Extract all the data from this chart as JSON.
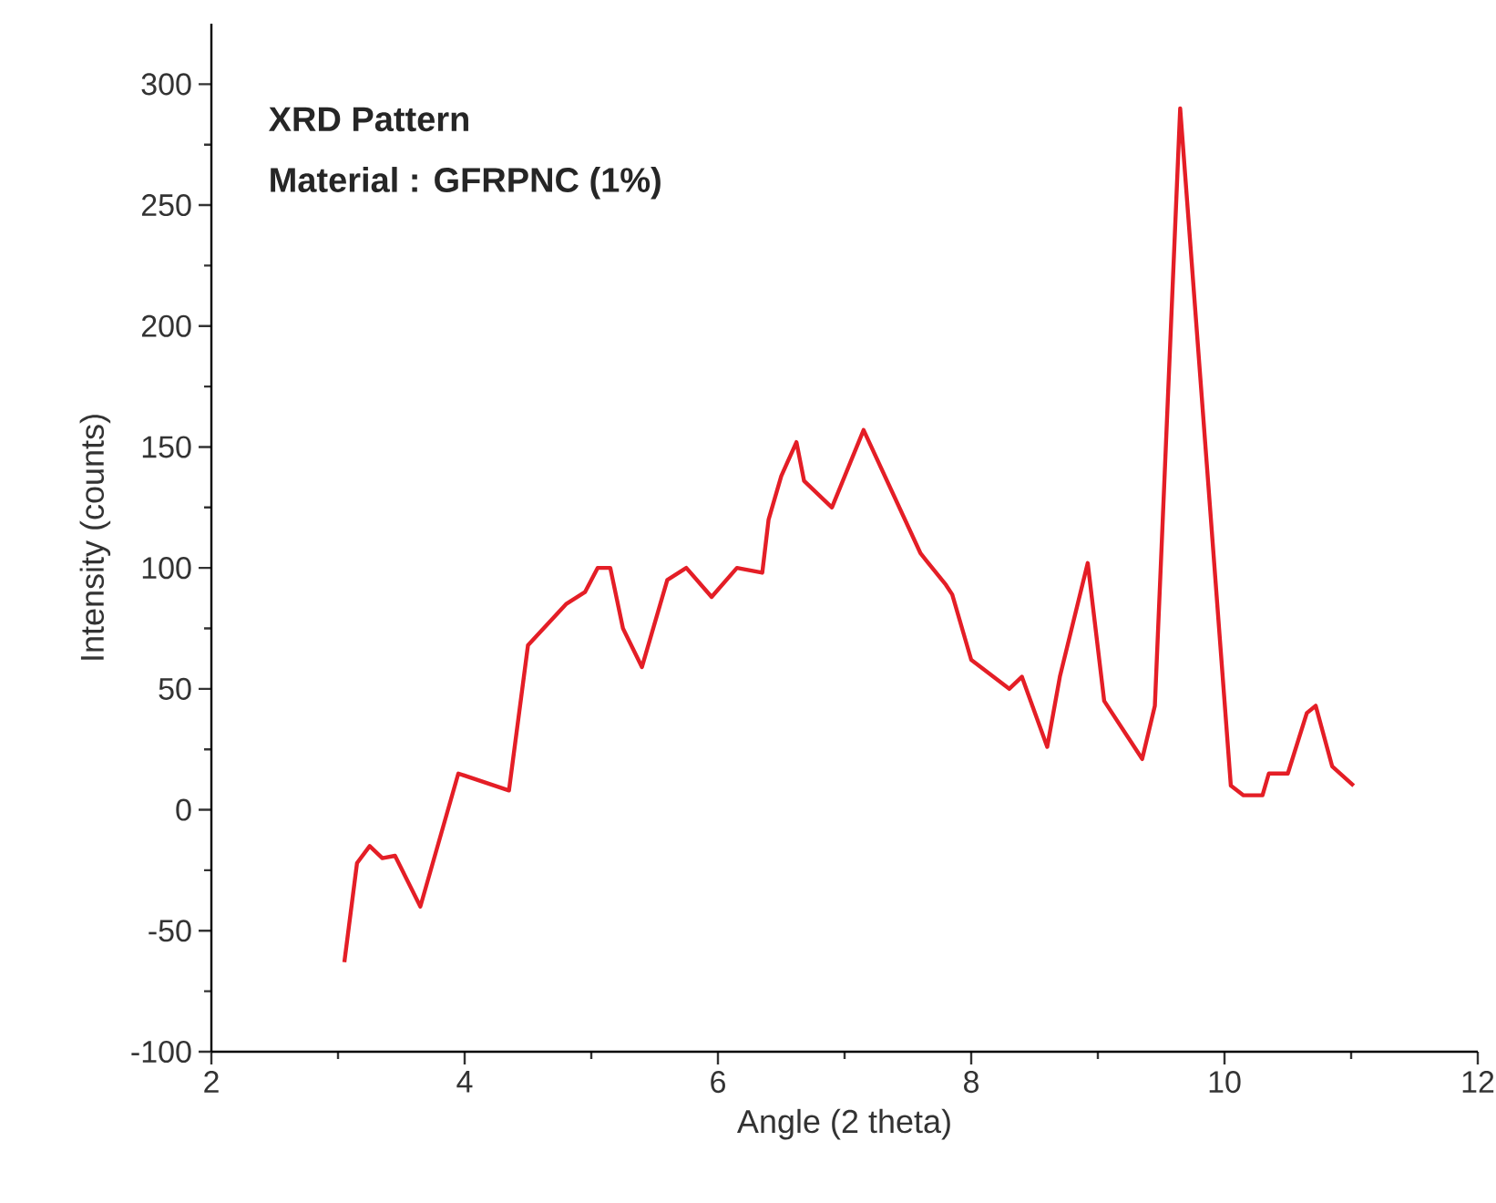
{
  "chart_data": {
    "type": "line",
    "xlabel": "Angle (2 theta)",
    "ylabel": "Intensity (counts)",
    "annotations": [
      "XRD Pattern",
      "Material : GFRPNC (1%)"
    ],
    "xlim": [
      2,
      12
    ],
    "xticks": [
      2,
      4,
      6,
      8,
      10,
      12
    ],
    "ylim": [
      -100,
      325
    ],
    "yticks": [
      -100,
      -50,
      0,
      50,
      100,
      150,
      200,
      250,
      300
    ],
    "grid": false,
    "marker": "none",
    "line_style": "solid",
    "series": [
      {
        "color": "#e41e26",
        "x": [
          3.05,
          3.15,
          3.25,
          3.35,
          3.45,
          3.65,
          3.95,
          4.35,
          4.5,
          4.8,
          4.95,
          5.05,
          5.15,
          5.25,
          5.4,
          5.6,
          5.75,
          5.95,
          6.15,
          6.35,
          6.4,
          6.5,
          6.62,
          6.68,
          6.9,
          7.15,
          7.6,
          7.8,
          7.85,
          8.0,
          8.3,
          8.4,
          8.6,
          8.7,
          8.92,
          9.05,
          9.35,
          9.45,
          9.65,
          10.05,
          10.15,
          10.3,
          10.35,
          10.5,
          10.65,
          10.72,
          10.85,
          11.02
        ],
        "values": [
          -63,
          -22,
          -15,
          -20,
          -19,
          -40,
          15,
          8,
          68,
          85,
          90,
          100,
          100,
          75,
          59,
          95,
          100,
          88,
          100,
          98,
          120,
          138,
          152,
          136,
          125,
          157,
          106,
          93,
          89,
          62,
          50,
          55,
          26,
          55,
          102,
          45,
          21,
          43,
          290,
          10,
          6,
          6,
          15,
          15,
          40,
          43,
          18,
          10
        ]
      }
    ]
  }
}
